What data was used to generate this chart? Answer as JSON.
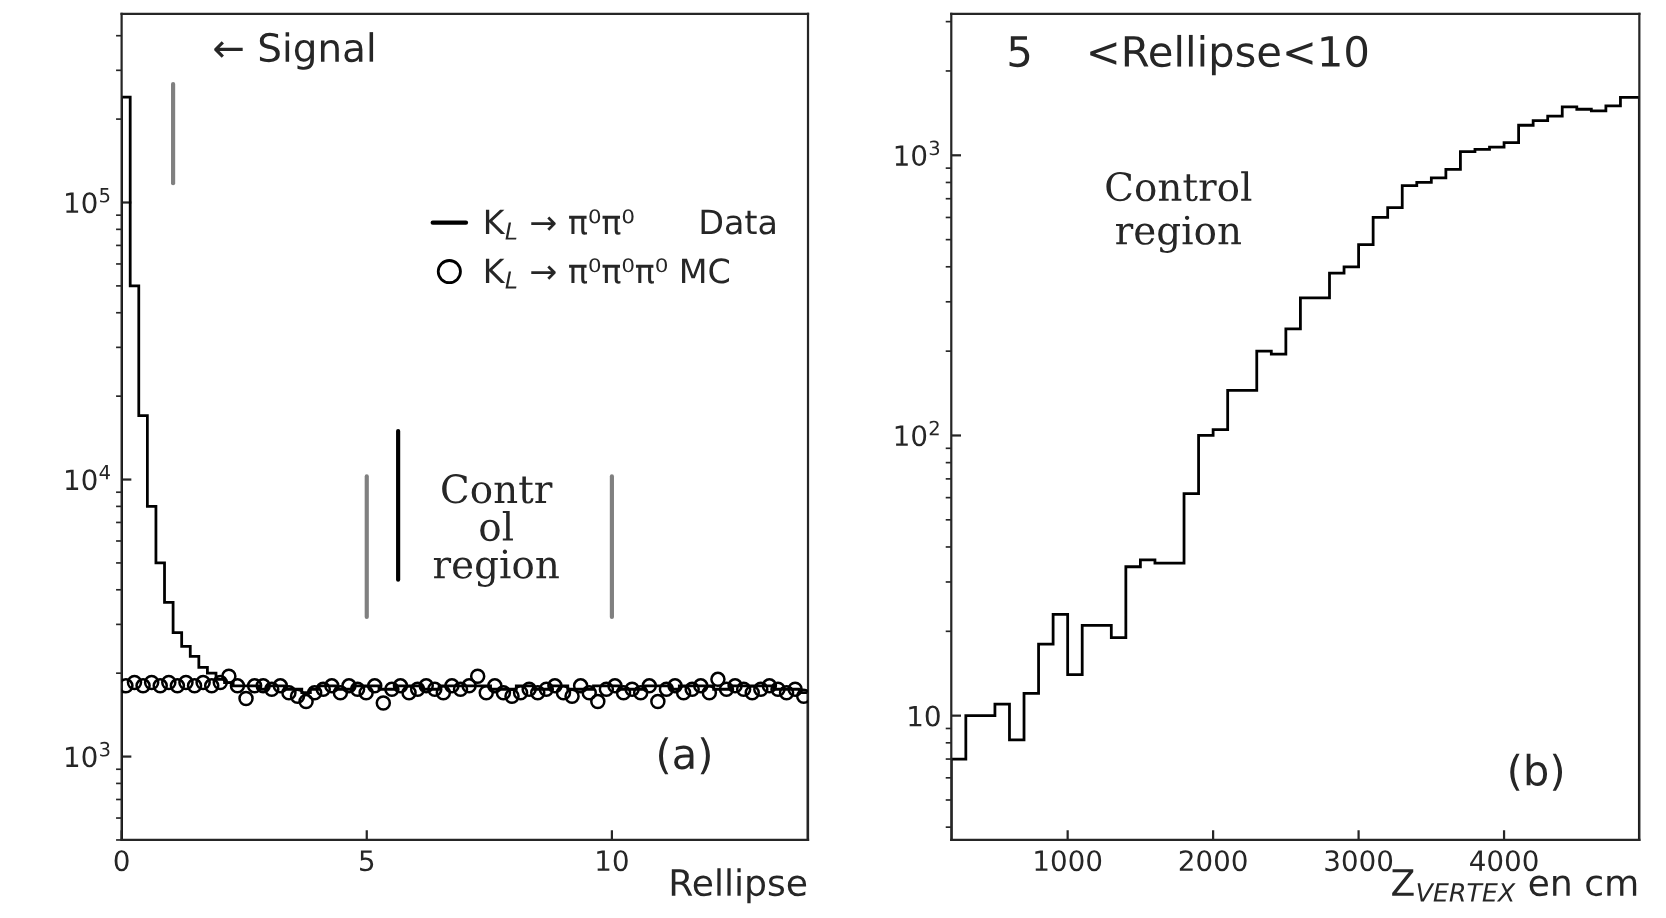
{
  "chart_data": [
    {
      "type": "histogram",
      "xlabel": "Rellipse",
      "log": "y",
      "xlim": [
        0,
        14
      ],
      "ylim": [
        500,
        480000
      ],
      "xticks": [
        0,
        5,
        10
      ],
      "yticks": [
        {
          "value": 1000,
          "label": "10$^{3}$"
        },
        {
          "value": 10000,
          "label": "10$^{4}$"
        },
        {
          "value": 100000,
          "label": "10$^{5}$"
        }
      ],
      "bins": [
        0,
        0.175,
        0.35,
        0.525,
        0.7,
        0.875,
        1.05,
        1.225,
        1.4,
        1.575,
        1.75,
        1.925,
        2.1,
        2.275,
        2.45,
        2.625,
        2.8,
        2.975,
        3.15,
        3.325,
        3.5,
        3.675,
        3.85,
        4.025,
        4.2,
        4.375,
        4.55,
        4.725,
        4.9,
        5.075,
        5.25,
        5.425,
        5.6,
        5.775,
        5.95,
        6.125,
        6.3,
        6.475,
        6.65,
        6.825,
        7,
        7.175,
        7.35,
        7.525,
        7.7,
        7.875,
        8.05,
        8.225,
        8.4,
        8.575,
        8.75,
        8.925,
        9.1,
        9.275,
        9.45,
        9.625,
        9.8,
        9.975,
        10.15,
        10.325,
        10.5,
        10.675,
        10.85,
        11.025,
        11.2,
        11.375,
        11.55,
        11.725,
        11.9,
        12.075,
        12.25,
        12.425,
        12.6,
        12.775,
        12.95,
        13.125,
        13.3,
        13.475,
        13.65,
        13.825,
        14
      ],
      "legend": "top right",
      "series": [
        {
          "type": "histogram",
          "name": "K$_{L}$ → π⁰π⁰      Data",
          "color": "#000000",
          "values": [
            240000,
            50000,
            17000,
            8000,
            5000,
            3600,
            2800,
            2500,
            2300,
            2100,
            2000,
            1900,
            1850,
            1800,
            1800,
            1800,
            1750,
            1800,
            1800,
            1750,
            1750,
            1700,
            1750,
            1800,
            1800,
            1750,
            1750,
            1800,
            1800,
            1800,
            1750,
            1750,
            1800,
            1800,
            1800,
            1750,
            1750,
            1800,
            1800,
            1800,
            1800,
            1800,
            1800,
            1750,
            1750,
            1750,
            1800,
            1800,
            1750,
            1750,
            1800,
            1800,
            1750,
            1750,
            1750,
            1800,
            1800,
            1800,
            1750,
            1750,
            1750,
            1800,
            1800,
            1800,
            1750,
            1800,
            1800,
            1800,
            1800,
            1750,
            1750,
            1800,
            1800,
            1800,
            1800,
            1800,
            1750,
            1750,
            1750,
            1700
          ]
        },
        {
          "type": "scatter",
          "name": "K$_{L}$ → π⁰π⁰π⁰ MC",
          "color": "#000000",
          "marker": "circle",
          "x": [
            0.0875,
            0.2625,
            0.4375,
            0.6125,
            0.7875,
            0.9625,
            1.1375,
            1.3125,
            1.4875,
            1.6625,
            1.8375,
            2.0125,
            2.1875,
            2.3625,
            2.5375,
            2.7125,
            2.8875,
            3.0625,
            3.2375,
            3.4125,
            3.5875,
            3.7625,
            3.9375,
            4.1125,
            4.2875,
            4.4625,
            4.6375,
            4.8125,
            4.9875,
            5.1625,
            5.3375,
            5.5125,
            5.6875,
            5.8625,
            6.0375,
            6.2125,
            6.3875,
            6.5625,
            6.7375,
            6.9125,
            7.0875,
            7.2625,
            7.4375,
            7.6125,
            7.7875,
            7.9625,
            8.1375,
            8.3125,
            8.4875,
            8.6625,
            8.8375,
            9.0125,
            9.1875,
            9.3625,
            9.5375,
            9.7125,
            9.8875,
            10.0625,
            10.2375,
            10.4125,
            10.5875,
            10.7625,
            10.9375,
            11.1125,
            11.2875,
            11.4625,
            11.6375,
            11.8125,
            11.9875,
            12.1625,
            12.3375,
            12.5125,
            12.6875,
            12.8625,
            13.0375,
            13.2125,
            13.3875,
            13.5625,
            13.7375,
            13.9125
          ],
          "values": [
            1800,
            1850,
            1800,
            1850,
            1800,
            1850,
            1800,
            1850,
            1800,
            1850,
            1800,
            1850,
            1950,
            1800,
            1620,
            1800,
            1800,
            1750,
            1800,
            1700,
            1650,
            1580,
            1700,
            1750,
            1800,
            1700,
            1800,
            1750,
            1700,
            1800,
            1560,
            1750,
            1800,
            1700,
            1750,
            1800,
            1750,
            1700,
            1800,
            1750,
            1800,
            1950,
            1700,
            1800,
            1700,
            1650,
            1700,
            1750,
            1700,
            1750,
            1800,
            1700,
            1650,
            1800,
            1700,
            1580,
            1750,
            1800,
            1700,
            1750,
            1700,
            1800,
            1580,
            1750,
            1800,
            1700,
            1750,
            1800,
            1700,
            1900,
            1750,
            1800,
            1750,
            1700,
            1750,
            1800,
            1750,
            1700,
            1750,
            1650
          ]
        }
      ],
      "ref_lines": [
        {
          "axis": "x",
          "value": 1.05,
          "label": "← Signal",
          "color": "#808080"
        },
        {
          "axis": "x",
          "value": 5,
          "color": "#808080"
        },
        {
          "axis": "x",
          "value": 10,
          "color": "#808080"
        },
        {
          "axis": "x",
          "value": 5.64,
          "label": "Contr\nol\nregion",
          "color": "#000000"
        }
      ],
      "annotations": [
        "(a)"
      ]
    },
    {
      "type": "histogram",
      "title": "5    <Rellipse<10",
      "xlabel": "Z$_{VERTEX}$ en cm",
      "log": "y",
      "xlim": [
        200,
        4930
      ],
      "ylim": [
        3.6,
        3200
      ],
      "xticks": [
        1000,
        2000,
        3000,
        4000
      ],
      "yticks": [
        {
          "value": 10,
          "label": "10"
        },
        {
          "value": 100,
          "label": "10$^{2}$"
        },
        {
          "value": 1000,
          "label": "10$^{3}$"
        }
      ],
      "bins": [
        200,
        300,
        400,
        500,
        600,
        700,
        800,
        900,
        1000,
        1100,
        1200,
        1300,
        1400,
        1500,
        1600,
        1700,
        1800,
        1900,
        2000,
        2100,
        2200,
        2300,
        2400,
        2500,
        2600,
        2700,
        2800,
        2900,
        3000,
        3100,
        3200,
        3300,
        3400,
        3500,
        3600,
        3700,
        3800,
        3900,
        4000,
        4100,
        4200,
        4300,
        4400,
        4500,
        4600,
        4700,
        4800,
        4930
      ],
      "color": "#000000",
      "values": [
        7,
        10,
        10,
        11,
        8.2,
        12,
        18,
        23,
        14,
        21,
        21,
        19,
        34,
        36,
        35,
        35,
        62,
        100,
        105,
        145,
        145,
        200,
        195,
        240,
        310,
        310,
        380,
        400,
        480,
        600,
        650,
        780,
        800,
        830,
        890,
        1030,
        1050,
        1070,
        1110,
        1280,
        1330,
        1380,
        1490,
        1460,
        1440,
        1500,
        1610
      ],
      "annotations": [
        "Control\nregion",
        "(b)"
      ]
    }
  ]
}
